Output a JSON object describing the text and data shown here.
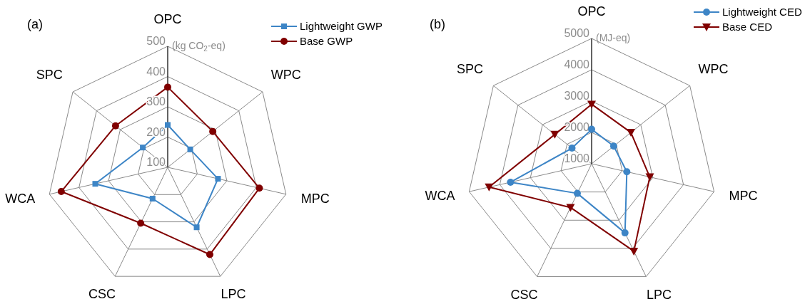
{
  "chart_data": [
    {
      "type": "radar",
      "title": "(a)",
      "ylabel": "(kg CO$_{2}$-eq)",
      "categories": [
        "OPC",
        "WPC",
        "MPC",
        "LPC",
        "CSC",
        "WCA",
        "SPC"
      ],
      "ylim": [
        100,
        500
      ],
      "yticks": [
        100,
        200,
        300,
        400,
        500
      ],
      "grid": true,
      "legend": "top right",
      "series": [
        {
          "name": "Lightweight GWP",
          "color": "#3d85c6",
          "marker": "square",
          "values": [
            240,
            195,
            270,
            320,
            215,
            345,
            205
          ]
        },
        {
          "name": "Base GWP",
          "color": "#800000",
          "marker": "circle",
          "values": [
            365,
            290,
            410,
            420,
            305,
            460,
            320
          ]
        }
      ]
    },
    {
      "type": "radar",
      "title": "(b)",
      "ylabel": "(MJ-eq)",
      "categories": [
        "OPC",
        "WPC",
        "MPC",
        "LPC",
        "CSC",
        "WCA",
        "SPC"
      ],
      "ylim": [
        1000,
        5000
      ],
      "yticks": [
        1000,
        2000,
        3000,
        4000,
        5000
      ],
      "grid": true,
      "legend": "top right",
      "series": [
        {
          "name": "Lightweight CED",
          "color": "#3d85c6",
          "marker": "circle",
          "values": [
            2100,
            1900,
            2150,
            3450,
            2050,
            3650,
            1800
          ]
        },
        {
          "name": "Base CED",
          "color": "#800000",
          "marker": "triangle",
          "values": [
            2900,
            2600,
            2900,
            4100,
            2550,
            4350,
            2500
          ]
        }
      ]
    }
  ]
}
